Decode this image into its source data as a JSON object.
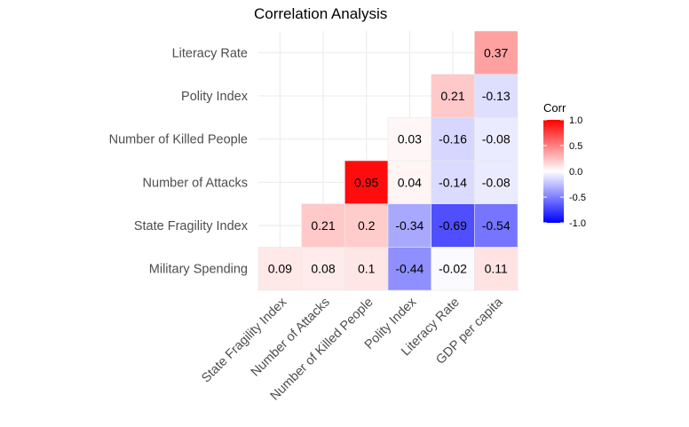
{
  "chart_data": {
    "type": "heatmap",
    "title": "Correlation Analysis",
    "x_categories": [
      "State Fragility Index",
      "Number of Attacks",
      "Number of Killed People",
      "Polity Index",
      "Literacy Rate",
      "GDP per capita"
    ],
    "y_categories": [
      "Military Spending",
      "State Fragility Index",
      "Number of Attacks",
      "Number of Killed People",
      "Polity Index",
      "Literacy Rate"
    ],
    "cells": [
      {
        "x": "State Fragility Index",
        "y": "Military Spending",
        "value": 0.09
      },
      {
        "x": "Number of Attacks",
        "y": "Military Spending",
        "value": 0.08
      },
      {
        "x": "Number of Killed People",
        "y": "Military Spending",
        "value": 0.1
      },
      {
        "x": "Polity Index",
        "y": "Military Spending",
        "value": -0.44
      },
      {
        "x": "Literacy Rate",
        "y": "Military Spending",
        "value": -0.02
      },
      {
        "x": "GDP per capita",
        "y": "Military Spending",
        "value": 0.11
      },
      {
        "x": "Number of Attacks",
        "y": "State Fragility Index",
        "value": 0.21
      },
      {
        "x": "Number of Killed People",
        "y": "State Fragility Index",
        "value": 0.2
      },
      {
        "x": "Polity Index",
        "y": "State Fragility Index",
        "value": -0.34
      },
      {
        "x": "Literacy Rate",
        "y": "State Fragility Index",
        "value": -0.69
      },
      {
        "x": "GDP per capita",
        "y": "State Fragility Index",
        "value": -0.54
      },
      {
        "x": "Number of Killed People",
        "y": "Number of Attacks",
        "value": 0.95
      },
      {
        "x": "Polity Index",
        "y": "Number of Attacks",
        "value": 0.04
      },
      {
        "x": "Literacy Rate",
        "y": "Number of Attacks",
        "value": -0.14
      },
      {
        "x": "GDP per capita",
        "y": "Number of Attacks",
        "value": -0.08
      },
      {
        "x": "Polity Index",
        "y": "Number of Killed People",
        "value": 0.03
      },
      {
        "x": "Literacy Rate",
        "y": "Number of Killed People",
        "value": -0.16
      },
      {
        "x": "GDP per capita",
        "y": "Number of Killed People",
        "value": -0.08
      },
      {
        "x": "Literacy Rate",
        "y": "Polity Index",
        "value": 0.21
      },
      {
        "x": "GDP per capita",
        "y": "Polity Index",
        "value": -0.13
      },
      {
        "x": "GDP per capita",
        "y": "Literacy Rate",
        "value": 0.37
      }
    ],
    "legend": {
      "title": "Corr",
      "ticks": [
        "1.0",
        "0.5",
        "0.0",
        "-0.5",
        "-1.0"
      ],
      "tick_values": [
        1.0,
        0.5,
        0.0,
        -0.5,
        -1.0
      ],
      "low_color": "#0000ff",
      "mid_color": "#ffffff",
      "high_color": "#ff0000",
      "range": [
        -1,
        1
      ],
      "placement": "right"
    },
    "grid": true
  }
}
